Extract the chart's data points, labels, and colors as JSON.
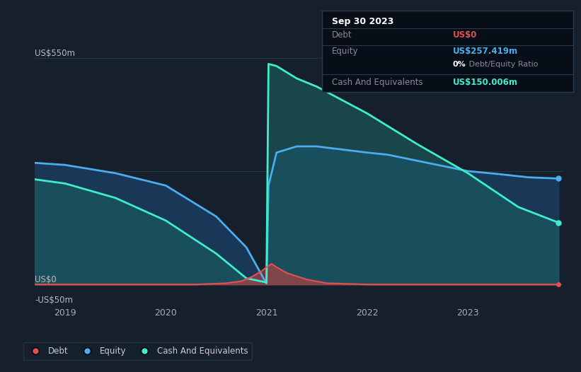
{
  "background_color": "#16202d",
  "plot_bg_color": "#16202d",
  "ylim": [
    -50,
    600
  ],
  "xlim": [
    2018.7,
    2023.95
  ],
  "xticks": [
    2019,
    2020,
    2021,
    2022,
    2023
  ],
  "grid_color": "#263545",
  "line_colors": {
    "debt": "#e05050",
    "equity": "#4aadee",
    "cash": "#3deec8"
  },
  "fill_colors": {
    "debt": "#c04040",
    "equity": "#1a3a5c",
    "cash": "#1a6060"
  },
  "debt_x": [
    2018.7,
    2019.0,
    2019.5,
    2020.0,
    2020.3,
    2020.6,
    2020.75,
    2020.85,
    2020.95,
    2021.0,
    2021.05,
    2021.1,
    2021.2,
    2021.4,
    2021.6,
    2022.0,
    2022.5,
    2023.0,
    2023.5,
    2023.9
  ],
  "debt_y": [
    0,
    0,
    0,
    0,
    0,
    3,
    8,
    18,
    32,
    42,
    50,
    42,
    28,
    12,
    3,
    0,
    0,
    0,
    0,
    0
  ],
  "equity_x": [
    2018.7,
    2019.0,
    2019.5,
    2020.0,
    2020.5,
    2020.8,
    2021.0,
    2021.02,
    2021.1,
    2021.3,
    2021.5,
    2022.0,
    2022.2,
    2022.5,
    2022.8,
    2023.0,
    2023.3,
    2023.6,
    2023.9
  ],
  "equity_y": [
    295,
    290,
    270,
    240,
    165,
    90,
    2,
    240,
    320,
    335,
    335,
    320,
    315,
    300,
    285,
    275,
    268,
    260,
    257
  ],
  "cash_x": [
    2018.7,
    2019.0,
    2019.5,
    2020.0,
    2020.5,
    2020.8,
    2021.0,
    2021.02,
    2021.1,
    2021.3,
    2021.5,
    2022.0,
    2022.5,
    2023.0,
    2023.5,
    2023.9
  ],
  "cash_y": [
    255,
    245,
    210,
    155,
    75,
    15,
    5,
    535,
    530,
    500,
    480,
    415,
    340,
    270,
    188,
    150
  ],
  "ylabel_top": "US$550m",
  "ylabel_zero": "US$0",
  "ylabel_neg": "-US$50m",
  "hlines_y": [
    550,
    275,
    0,
    -50
  ],
  "end_marker_x": 2023.9,
  "info_box": {
    "title": "Sep 30 2023",
    "rows": [
      {
        "label": "Debt",
        "value": "US$0",
        "value_color": "#e05050",
        "has_sub": false
      },
      {
        "label": "Equity",
        "value": "US$257.419m",
        "value_color": "#4aadee",
        "has_sub": true,
        "sub_bold": "0%",
        "sub_rest": " Debt/Equity Ratio"
      },
      {
        "label": "Cash And Equivalents",
        "value": "US$150.006m",
        "value_color": "#3deec8",
        "has_sub": false
      }
    ],
    "bg_color": "#080e18",
    "border_color": "#2a3a4a",
    "title_color": "#ffffff",
    "label_color": "#888899",
    "sub_bold_color": "#ffffff",
    "sub_rest_color": "#888899"
  },
  "legend": {
    "items": [
      {
        "label": "Debt",
        "color": "#e05050"
      },
      {
        "label": "Equity",
        "color": "#4aadee"
      },
      {
        "label": "Cash And Equivalents",
        "color": "#3deec8"
      }
    ],
    "border_color": "#2a3a4a",
    "text_color": "#cccccc",
    "bg_color": "#16202d"
  }
}
